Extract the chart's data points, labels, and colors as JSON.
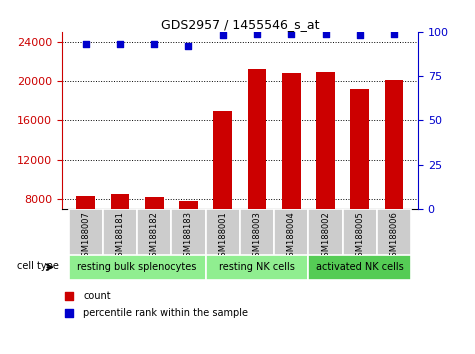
{
  "title": "GDS2957 / 1455546_s_at",
  "samples": [
    "GSM188007",
    "GSM188181",
    "GSM188182",
    "GSM188183",
    "GSM188001",
    "GSM188003",
    "GSM188004",
    "GSM188002",
    "GSM188005",
    "GSM188006"
  ],
  "counts": [
    8300,
    8500,
    8200,
    7800,
    17000,
    21200,
    20800,
    20900,
    19200,
    20100
  ],
  "percentiles": [
    93,
    93,
    93,
    92,
    98,
    99,
    99,
    99,
    98,
    99
  ],
  "groups": [
    {
      "label": "resting bulk splenocytes",
      "start": 0,
      "end": 4,
      "color": "#90ee90"
    },
    {
      "label": "resting NK cells",
      "start": 4,
      "end": 7,
      "color": "#90ee90"
    },
    {
      "label": "activated NK cells",
      "start": 7,
      "end": 10,
      "color": "#55cc55"
    }
  ],
  "ylim_left": [
    7000,
    25000
  ],
  "ylim_right": [
    0,
    100
  ],
  "yticks_left": [
    8000,
    12000,
    16000,
    20000,
    24000
  ],
  "yticks_right": [
    0,
    25,
    50,
    75,
    100
  ],
  "bar_color": "#cc0000",
  "dot_color": "#0000cc",
  "bar_width": 0.55,
  "cell_type_label": "cell type",
  "legend_count_label": "count",
  "legend_percentile_label": "percentile rank within the sample",
  "left_axis_color": "#cc0000",
  "right_axis_color": "#0000cc",
  "background_color": "#ffffff",
  "sample_box_color": "#cccccc",
  "group_box_color_1": "#90ee90",
  "group_box_color_2": "#55cc55"
}
